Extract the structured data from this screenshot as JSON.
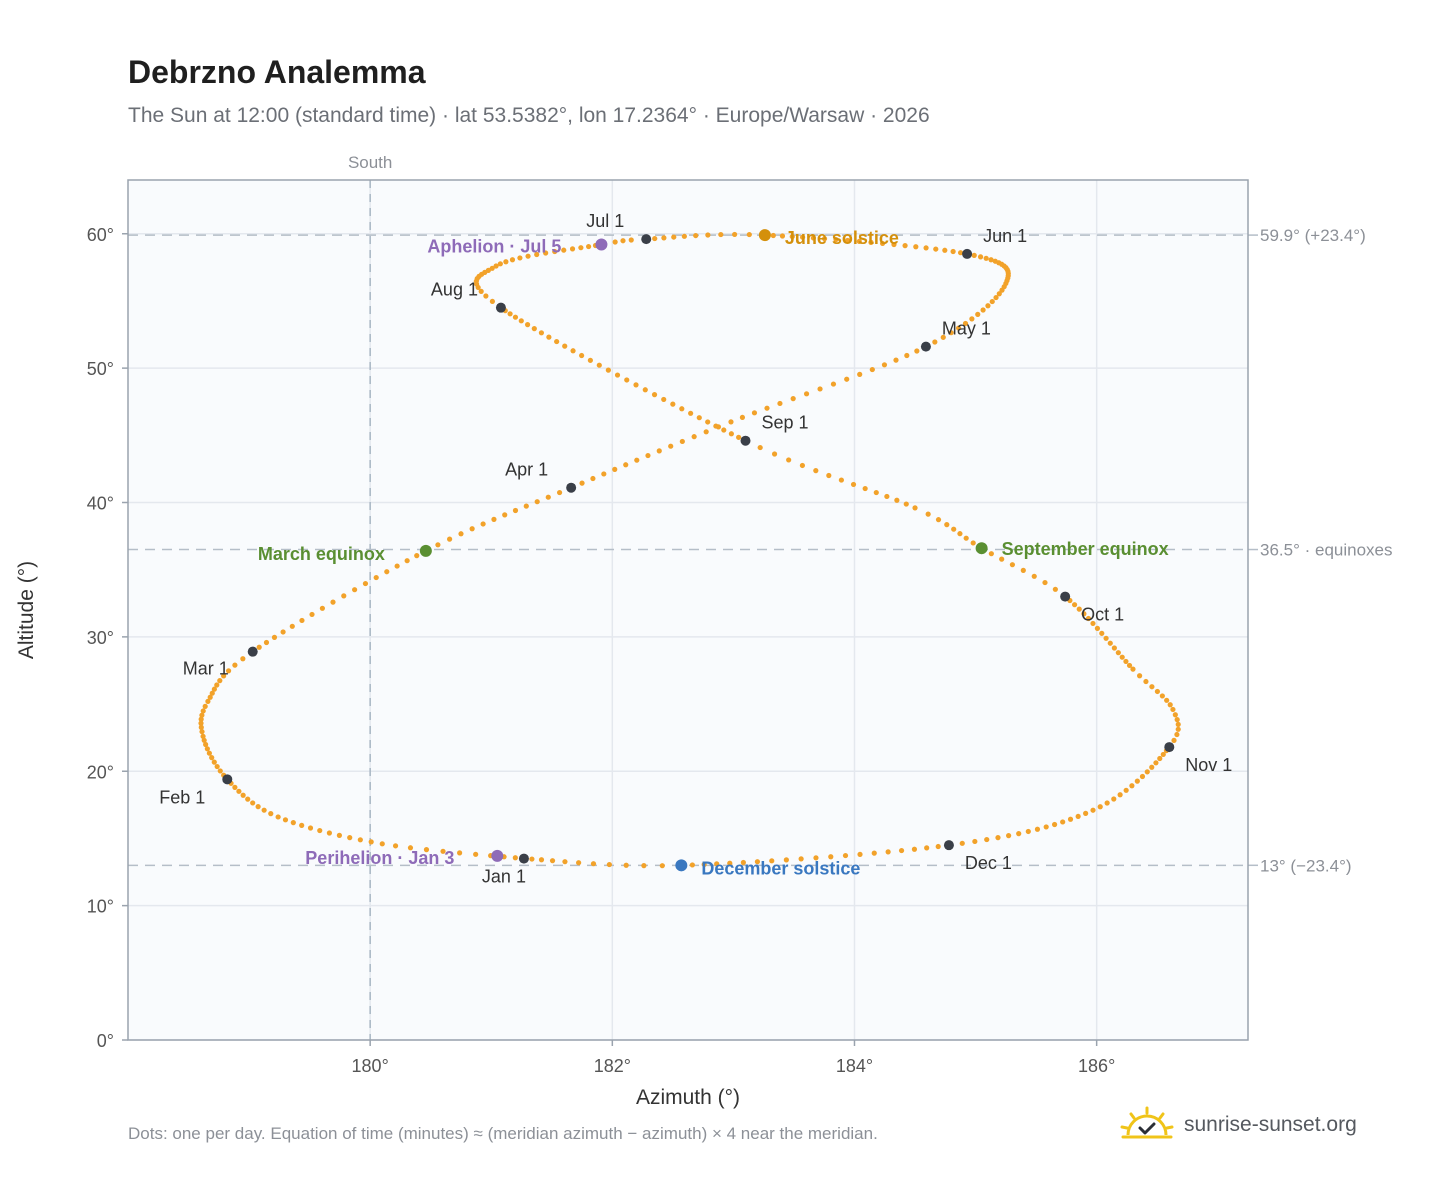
{
  "header": {
    "title": "Debrzno Analemma",
    "subtitle": "The Sun at 12:00 (standard time) · lat 53.5382°, lon 17.2364° · Europe/Warsaw · 2026"
  },
  "footer": {
    "note": "Dots: one per day. Equation of time (minutes) ≈ (meridian azimuth − azimuth) × 4 near the meridian.",
    "brand": "sunrise-sunset.org"
  },
  "colors": {
    "curve": "#f2a22a",
    "month_marker": "#3a3f48",
    "equinox": "#5a8f32",
    "june_solstice": "#d4900c",
    "december_solstice": "#3a78c0",
    "apsis": "#8e6bb8",
    "logo": "#f0c419"
  },
  "chart_data": {
    "type": "scatter",
    "xlabel": "Azimuth (°)",
    "ylabel": "Altitude (°)",
    "xlim": [
      178,
      187.25
    ],
    "ylim": [
      0,
      64
    ],
    "x_ticks": [
      180,
      182,
      184,
      186
    ],
    "x_tick_labels": [
      "180°",
      "182°",
      "184°",
      "186°"
    ],
    "y_ticks": [
      0,
      10,
      20,
      30,
      40,
      50,
      60
    ],
    "y_tick_labels": [
      "0°",
      "10°",
      "20°",
      "30°",
      "40°",
      "50°",
      "60°"
    ],
    "grid": true,
    "south_line": {
      "x": 180,
      "label": "South"
    },
    "reference_lines": [
      {
        "y": 59.9,
        "label": "59.9° (+23.4°)"
      },
      {
        "y": 36.5,
        "label": "36.5° · equinoxes"
      },
      {
        "y": 13.0,
        "label": "13° (−23.4°)"
      }
    ],
    "month_anchors": [
      {
        "label": "Jan 1",
        "day": 1,
        "x": 181.27,
        "y": 13.5,
        "ldx": -42,
        "ldy": 24,
        "anchor": "start"
      },
      {
        "label": "Feb 1",
        "day": 32,
        "x": 178.82,
        "y": 19.4,
        "ldx": -68,
        "ldy": 24,
        "anchor": "start"
      },
      {
        "label": "Mar 1",
        "day": 60,
        "x": 179.03,
        "y": 28.9,
        "ldx": -70,
        "ldy": 23,
        "anchor": "start"
      },
      {
        "label": "Apr 1",
        "day": 91,
        "x": 181.66,
        "y": 41.1,
        "ldx": -66,
        "ldy": -12,
        "anchor": "start"
      },
      {
        "label": "May 1",
        "day": 121,
        "x": 184.59,
        "y": 51.6,
        "ldx": 16,
        "ldy": -12,
        "anchor": "start"
      },
      {
        "label": "Jun 1",
        "day": 152,
        "x": 184.93,
        "y": 58.5,
        "ldx": 16,
        "ldy": -12,
        "anchor": "start"
      },
      {
        "label": "Jul 1",
        "day": 182,
        "x": 182.28,
        "y": 59.6,
        "ldx": -60,
        "ldy": -12,
        "anchor": "start"
      },
      {
        "label": "Aug 1",
        "day": 213,
        "x": 181.08,
        "y": 54.5,
        "ldx": -70,
        "ldy": -12,
        "anchor": "start"
      },
      {
        "label": "Sep 1",
        "day": 244,
        "x": 183.1,
        "y": 44.6,
        "ldx": 16,
        "ldy": -12,
        "anchor": "start"
      },
      {
        "label": "Oct 1",
        "day": 274,
        "x": 185.74,
        "y": 33.0,
        "ldx": 16,
        "ldy": 24,
        "anchor": "start"
      },
      {
        "label": "Nov 1",
        "day": 305,
        "x": 186.6,
        "y": 21.8,
        "ldx": 16,
        "ldy": 24,
        "anchor": "start"
      },
      {
        "label": "Dec 1",
        "day": 335,
        "x": 184.78,
        "y": 14.5,
        "ldx": 16,
        "ldy": 24,
        "anchor": "start"
      }
    ],
    "curve_extra_anchors": [
      {
        "day": 11,
        "x": 180.1,
        "y": 14.6
      },
      {
        "day": 22,
        "x": 179.24,
        "y": 16.6
      },
      {
        "day": 42,
        "x": 178.62,
        "y": 22.6
      },
      {
        "day": 50,
        "x": 178.66,
        "y": 25.2
      },
      {
        "day": 78,
        "x": 180.46,
        "y": 36.4
      },
      {
        "day": 105,
        "x": 182.98,
        "y": 46.0
      },
      {
        "day": 136,
        "x": 185.25,
        "y": 56.3
      },
      {
        "day": 172,
        "x": 183.26,
        "y": 59.9
      },
      {
        "day": 186,
        "x": 181.91,
        "y": 59.2
      },
      {
        "day": 200,
        "x": 181.04,
        "y": 57.6
      },
      {
        "day": 258,
        "x": 184.5,
        "y": 39.6
      },
      {
        "day": 266,
        "x": 185.05,
        "y": 36.6
      },
      {
        "day": 290,
        "x": 186.3,
        "y": 27.6
      },
      {
        "day": 298,
        "x": 186.63,
        "y": 24.6
      },
      {
        "day": 320,
        "x": 185.97,
        "y": 17.1
      },
      {
        "day": 355,
        "x": 182.57,
        "y": 13.0
      },
      {
        "day": 366,
        "x": 181.27,
        "y": 13.5
      }
    ],
    "events": [
      {
        "label": "March equinox",
        "x": 180.46,
        "y": 36.4,
        "color": "#5a8f32",
        "ldx": -168,
        "ldy": 9,
        "anchor": "start"
      },
      {
        "label": "June solstice",
        "x": 183.26,
        "y": 59.9,
        "color": "#d4900c",
        "ldx": 20,
        "ldy": 9,
        "anchor": "start"
      },
      {
        "label": "September equinox",
        "x": 185.05,
        "y": 36.6,
        "color": "#5a8f32",
        "ldx": 20,
        "ldy": 7,
        "anchor": "start"
      },
      {
        "label": "December solstice",
        "x": 182.57,
        "y": 13.0,
        "color": "#3a78c0",
        "ldx": 20,
        "ldy": 9,
        "anchor": "start"
      },
      {
        "label": "Perihelion · Jan 3",
        "x": 181.05,
        "y": 13.7,
        "color": "#8e6bb8",
        "ldx": -192,
        "ldy": 8,
        "anchor": "start"
      },
      {
        "label": "Aphelion · Jul 5",
        "x": 181.91,
        "y": 59.2,
        "color": "#8e6bb8",
        "ldx": -174,
        "ldy": 8,
        "anchor": "start"
      }
    ]
  }
}
